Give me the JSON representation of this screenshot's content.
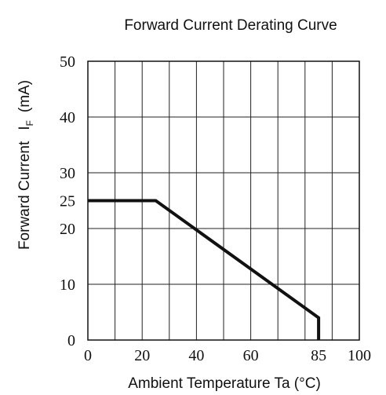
{
  "chart_data": {
    "type": "line",
    "title": "Forward Current Derating Curve",
    "xlabel": "Ambient Temperature Ta (°C)",
    "ylabel_main": "Forward Current",
    "ylabel_symbol": "I",
    "ylabel_subscript": "F",
    "ylabel_unit": "(mA)",
    "xlim": [
      0,
      100
    ],
    "ylim": [
      0,
      50
    ],
    "grid": true,
    "x_ticks": [
      {
        "value": 0,
        "label": "0"
      },
      {
        "value": 20,
        "label": "20"
      },
      {
        "value": 40,
        "label": "40"
      },
      {
        "value": 60,
        "label": "60"
      },
      {
        "value": 85,
        "label": "85"
      },
      {
        "value": 100,
        "label": "100"
      }
    ],
    "y_ticks": [
      {
        "value": 0,
        "label": "0"
      },
      {
        "value": 10,
        "label": "10"
      },
      {
        "value": 20,
        "label": "20"
      },
      {
        "value": 25,
        "label": "25"
      },
      {
        "value": 30,
        "label": "30"
      },
      {
        "value": 40,
        "label": "40"
      },
      {
        "value": 50,
        "label": "50"
      }
    ],
    "x_gridlines": [
      0,
      10,
      20,
      30,
      40,
      50,
      60,
      70,
      80,
      90,
      100
    ],
    "y_gridlines": [
      0,
      10,
      20,
      30,
      40,
      50
    ],
    "series": [
      {
        "color": "#111111",
        "x": [
          0,
          25,
          85,
          85
        ],
        "y": [
          25,
          25,
          4,
          0
        ]
      }
    ]
  }
}
